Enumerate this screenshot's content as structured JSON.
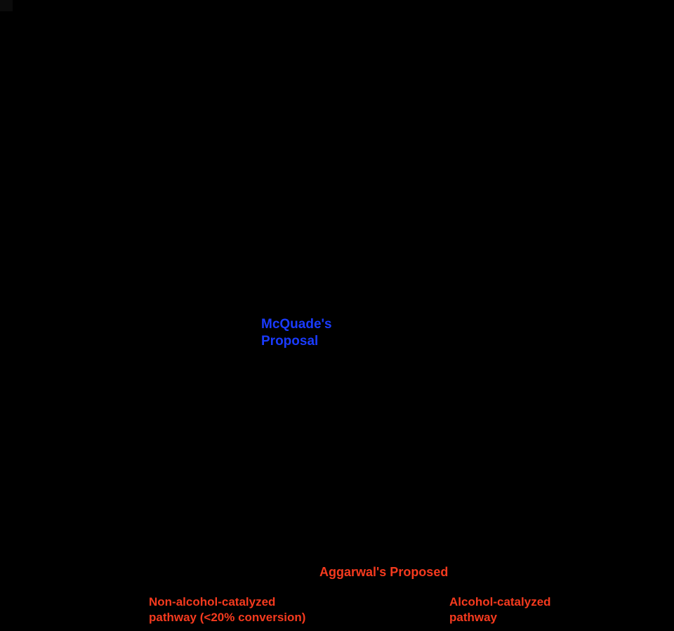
{
  "figure": {
    "background_color": "#000000",
    "corner_artifact_color": "#0b0b0b",
    "accent_blue": "#1a3bff",
    "accent_red": "#f53a1e"
  },
  "labels": {
    "mcquade": {
      "line1": "McQuade's",
      "line2": "Proposal",
      "color": "#1a3bff"
    },
    "aggarwal": {
      "text": "Aggarwal's Proposed",
      "color": "#f53a1e"
    },
    "non_alcohol": {
      "line1": "Non-alcohol-catalyzed",
      "line2": "pathway (<20% conversion)",
      "color": "#f53a1e"
    },
    "alcohol": {
      "line1": "Alcohol-catalyzed",
      "line2": "pathway",
      "color": "#f53a1e"
    }
  }
}
